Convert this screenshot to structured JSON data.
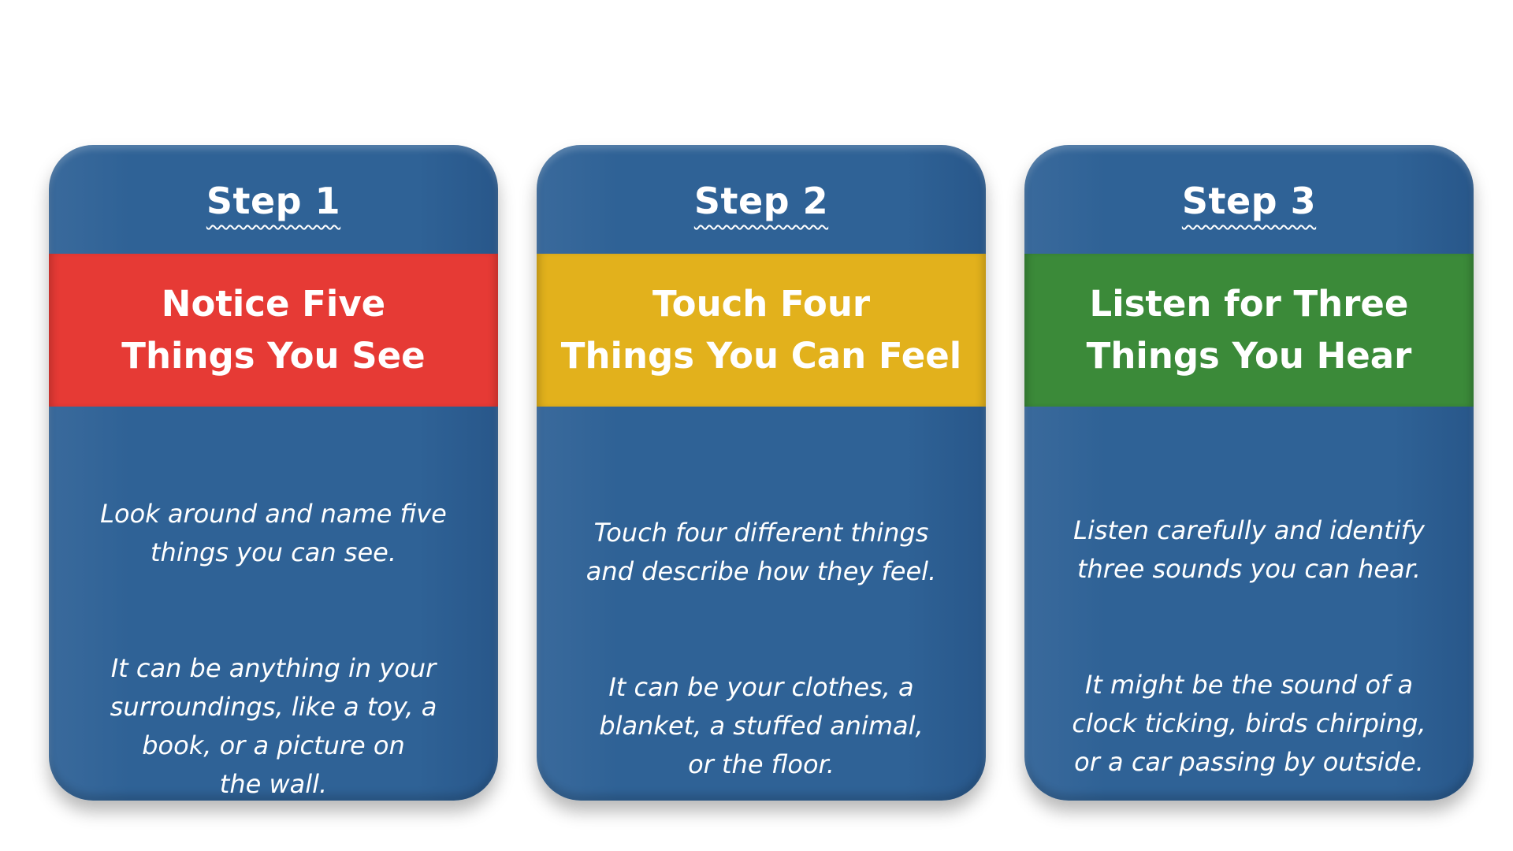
{
  "cards": [
    {
      "step": "Step 1",
      "title": "Notice Five\nThings You See",
      "band_color": "#e63a35",
      "paragraphs": [
        "Look around and name five\nthings you can see.",
        "It can be anything in your\nsurroundings, like a toy, a\nbook, or a picture on\nthe wall."
      ]
    },
    {
      "step": "Step 2",
      "title": "Touch Four\nThings You Can Feel",
      "band_color": "#e2b11c",
      "paragraphs": [
        "Touch four different things\nand describe how they feel.",
        "It can be your clothes, a\nblanket, a stuffed animal,\nor the floor."
      ]
    },
    {
      "step": "Step 3",
      "title": "Listen for Three\nThings You Hear",
      "band_color": "#3b8a39",
      "paragraphs": [
        "Listen carefully and identify\nthree sounds you can hear.",
        "It might be the sound of a\nclock ticking, birds chirping,\nor a car passing by outside."
      ]
    }
  ],
  "card_color": "#2f6296"
}
